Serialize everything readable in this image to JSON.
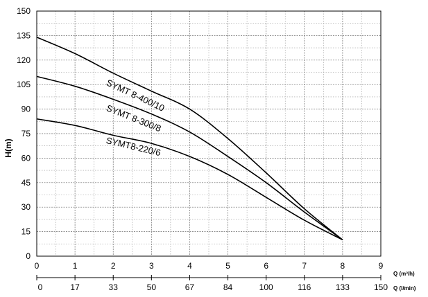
{
  "chart_data": {
    "type": "line",
    "title": "",
    "ylabel": "H(m)",
    "xlabel": "Q (m³/h)",
    "x2label": "Q (l/min)",
    "xlim": [
      0,
      9
    ],
    "ylim": [
      0,
      150
    ],
    "x_ticks": [
      0,
      1,
      2,
      3,
      4,
      5,
      6,
      7,
      8,
      9
    ],
    "x_tick_labels": [
      "0",
      "1",
      "2",
      "3",
      "4",
      "5",
      "6",
      "7",
      "8",
      "9"
    ],
    "y_ticks": [
      0,
      15,
      30,
      45,
      60,
      75,
      90,
      105,
      120,
      135,
      150
    ],
    "y_tick_labels": [
      "0",
      "15",
      "30",
      "45",
      "60",
      "75",
      "90",
      "105",
      "120",
      "135",
      "150"
    ],
    "x2_ticks": [
      0,
      1,
      2,
      3,
      4,
      5,
      6,
      7,
      8,
      9
    ],
    "x2_tick_labels": [
      "0",
      "17",
      "33",
      "50",
      "67",
      "84",
      "100",
      "116",
      "133",
      "150"
    ],
    "grid": true,
    "legend": "none",
    "series": [
      {
        "name": "SYMT 8-400/10",
        "x": [
          0,
          1,
          2,
          3,
          4,
          5,
          6,
          7,
          8
        ],
        "y": [
          134,
          124,
          112,
          101,
          90,
          72,
          51,
          29,
          10
        ]
      },
      {
        "name": "SYMT 8-300/8",
        "x": [
          0,
          1,
          2,
          3,
          4,
          5,
          6,
          7,
          8
        ],
        "y": [
          110,
          104,
          96,
          87,
          76,
          61,
          45,
          27,
          10
        ]
      },
      {
        "name": "SYMT8-220/6",
        "x": [
          0,
          1,
          2,
          3,
          4,
          5,
          6,
          7,
          8
        ],
        "y": [
          84,
          80,
          74,
          69,
          61,
          50,
          36,
          22,
          10
        ]
      }
    ]
  }
}
